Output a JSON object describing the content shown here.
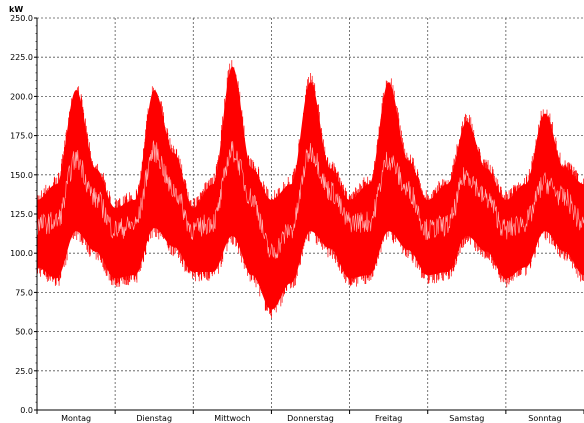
{
  "chart_data": {
    "type": "area",
    "title": "",
    "xlabel": "",
    "ylabel": "kW",
    "ylim": [
      0,
      250
    ],
    "yticks": [
      0,
      25,
      50,
      75,
      100,
      125,
      150,
      175,
      200,
      225,
      250
    ],
    "ytick_labels": [
      "0.0",
      "25.0",
      "50.0",
      "75.0",
      "100.0",
      "125.0",
      "150.0",
      "175.0",
      "200.0",
      "225.0",
      "250.0"
    ],
    "categories": [
      "Montag",
      "Dienstag",
      "Mittwoch",
      "Donnerstag",
      "Freitag",
      "Samstag",
      "Sonntag"
    ],
    "xlim": [
      0,
      7
    ],
    "grid": true,
    "colors": {
      "band": "#ff0000",
      "center": "#ffd6d6",
      "grid": "#555555",
      "axis": "#000000"
    },
    "series": [
      {
        "x": [
          0,
          0.25,
          0.5,
          0.75,
          1,
          1.25,
          1.5,
          1.75,
          2,
          2.25,
          2.5,
          2.75,
          3,
          3.25,
          3.5,
          3.75,
          4,
          4.25,
          4.5,
          4.75,
          5,
          5.25,
          5.5,
          5.75,
          6,
          6.25,
          6.5,
          6.75,
          7
        ],
        "low": [
          85,
          78,
          108,
          95,
          78,
          80,
          110,
          98,
          82,
          82,
          105,
          80,
          58,
          75,
          108,
          97,
          78,
          80,
          108,
          96,
          80,
          82,
          105,
          95,
          78,
          85,
          108,
          95,
          80
        ],
        "mid": [
          118,
          120,
          160,
          135,
          115,
          118,
          165,
          140,
          115,
          120,
          165,
          135,
          100,
          115,
          165,
          140,
          120,
          120,
          160,
          140,
          115,
          118,
          150,
          135,
          115,
          120,
          145,
          135,
          118
        ],
        "high": [
          140,
          150,
          210,
          160,
          135,
          140,
          210,
          170,
          135,
          150,
          225,
          160,
          140,
          150,
          215,
          160,
          140,
          150,
          215,
          165,
          140,
          150,
          190,
          160,
          140,
          150,
          195,
          160,
          150
        ]
      }
    ]
  }
}
